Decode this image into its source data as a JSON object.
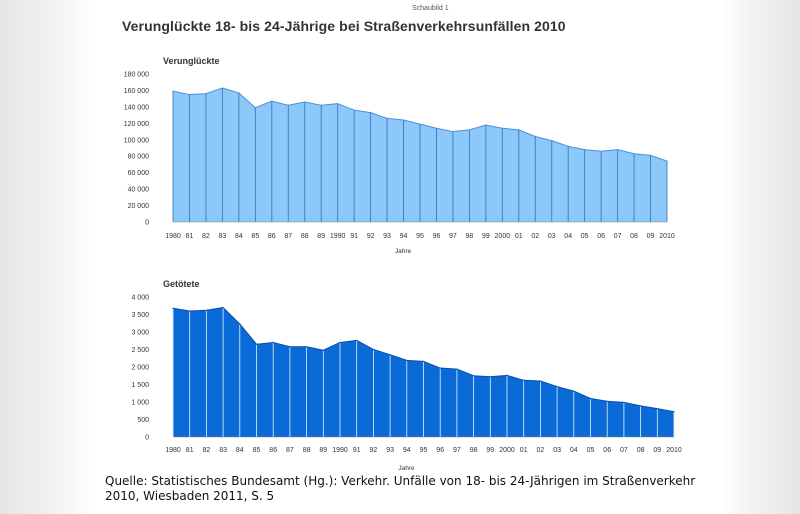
{
  "page": {
    "figure_label": "Schaubild 1",
    "title": "Verunglückte 18- bis 24-Jährige bei Straßenverkehrsunfällen 2010",
    "source_line1": "Quelle: Statistisches Bundesamt (Hg.): Verkehr. Unfälle von 18- bis 24-Jährigen im Straßenverkehr",
    "source_line2": "2010, Wiesbaden 2011, S. 5"
  },
  "chart_data": [
    {
      "type": "area",
      "title": "Verunglückte",
      "xlabel": "Jahre",
      "ylabel": "",
      "x": [
        1980,
        1981,
        1982,
        1983,
        1984,
        1985,
        1986,
        1987,
        1988,
        1989,
        1990,
        1991,
        1992,
        1993,
        1994,
        1995,
        1996,
        1997,
        1998,
        1999,
        2000,
        2001,
        2002,
        2003,
        2004,
        2005,
        2006,
        2007,
        2008,
        2009,
        2010
      ],
      "x_tick_labels": [
        "1980",
        "81",
        "82",
        "83",
        "84",
        "85",
        "86",
        "87",
        "88",
        "89",
        "1990",
        "91",
        "92",
        "93",
        "94",
        "95",
        "96",
        "97",
        "98",
        "99",
        "2000",
        "01",
        "02",
        "03",
        "04",
        "05",
        "06",
        "07",
        "08",
        "09",
        "2010"
      ],
      "values": [
        159000,
        155000,
        156000,
        163000,
        157000,
        139000,
        147000,
        142000,
        146000,
        142000,
        144000,
        136000,
        133000,
        126000,
        124000,
        119000,
        114000,
        110000,
        112000,
        118000,
        114000,
        112000,
        104000,
        99000,
        92000,
        88000,
        86000,
        88000,
        83000,
        81000,
        74000
      ],
      "ylim": [
        0,
        180000
      ],
      "yticks": [
        0,
        20000,
        40000,
        60000,
        80000,
        100000,
        120000,
        140000,
        160000,
        180000
      ],
      "ytick_labels": [
        "0",
        "20 000",
        "40 000",
        "60 000",
        "80 000",
        "100 000",
        "120 000",
        "140 000",
        "160 000",
        "180 000"
      ],
      "fill_color": "#8cc8fa",
      "line_color": "#4a90d9",
      "grid": false
    },
    {
      "type": "area",
      "title": "Getötete",
      "xlabel": "Jahre",
      "ylabel": "",
      "x": [
        1980,
        1981,
        1982,
        1983,
        1984,
        1985,
        1986,
        1987,
        1988,
        1989,
        1990,
        1991,
        1992,
        1993,
        1994,
        1995,
        1996,
        1997,
        1998,
        1999,
        2000,
        2001,
        2002,
        2003,
        2004,
        2005,
        2006,
        2007,
        2008,
        2009,
        2010
      ],
      "x_tick_labels": [
        "1980",
        "81",
        "82",
        "83",
        "84",
        "85",
        "86",
        "87",
        "88",
        "89",
        "1990",
        "91",
        "92",
        "93",
        "94",
        "95",
        "96",
        "97",
        "98",
        "99",
        "2000",
        "01",
        "02",
        "03",
        "04",
        "05",
        "06",
        "07",
        "08",
        "09",
        "2010"
      ],
      "values": [
        3680,
        3600,
        3620,
        3700,
        3230,
        2650,
        2700,
        2580,
        2580,
        2480,
        2700,
        2760,
        2500,
        2350,
        2190,
        2160,
        1970,
        1940,
        1750,
        1720,
        1760,
        1620,
        1600,
        1440,
        1310,
        1100,
        1020,
        990,
        890,
        810,
        720
      ],
      "ylim": [
        0,
        4000
      ],
      "yticks": [
        0,
        500,
        1000,
        1500,
        2000,
        2500,
        3000,
        3500,
        4000
      ],
      "ytick_labels": [
        "0",
        "500",
        "1 000",
        "1 500",
        "2 000",
        "2 500",
        "3 000",
        "3 500",
        "4 000"
      ],
      "fill_color": "#0a6ad8",
      "line_color": "#0750a8",
      "grid": false
    }
  ]
}
